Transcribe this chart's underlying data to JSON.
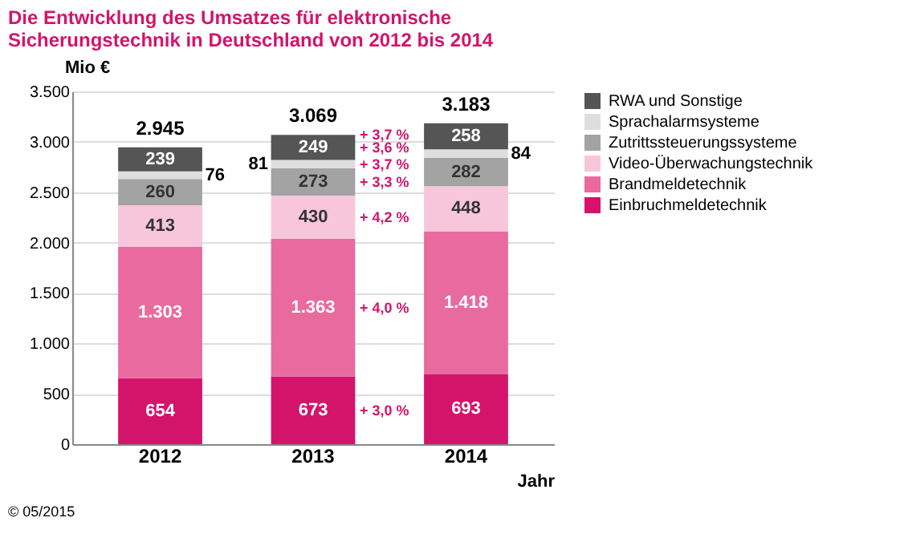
{
  "chart_data": {
    "type": "bar",
    "stacked": true,
    "title": "Die Entwicklung des Umsatzes für elektronische Sicherungstechnik in Deutschland von 2012 bis 2014",
    "ylabel": "Mio €",
    "xlabel": "Jahr",
    "categories": [
      "2012",
      "2013",
      "2014"
    ],
    "series": [
      {
        "name": "Einbruchmeldetechnik",
        "color": "#d4146a",
        "values": [
          654,
          673,
          693
        ],
        "value_labels": [
          "654",
          "673",
          "693"
        ]
      },
      {
        "name": "Brandmeldetechnik",
        "color": "#e96a9f",
        "values": [
          1303,
          1363,
          1418
        ],
        "value_labels": [
          "1.303",
          "1.363",
          "1.418"
        ]
      },
      {
        "name": "Video-Überwachungstechnik",
        "color": "#f7c6da",
        "values": [
          413,
          430,
          448
        ],
        "value_labels": [
          "413",
          "430",
          "448"
        ]
      },
      {
        "name": "Zutrittssteuerungssysteme",
        "color": "#a3a3a3",
        "values": [
          260,
          273,
          282
        ],
        "value_labels": [
          "260",
          "273",
          "282"
        ]
      },
      {
        "name": "Sprachalarmsysteme",
        "color": "#dedede",
        "values": [
          76,
          81,
          84
        ],
        "value_labels": [
          "76",
          "81",
          "84"
        ]
      },
      {
        "name": "RWA und Sonstige",
        "color": "#555555",
        "values": [
          239,
          249,
          258
        ],
        "value_labels": [
          "239",
          "249",
          "258"
        ]
      }
    ],
    "totals": [
      "2.945",
      "3.069",
      "3.183"
    ],
    "annotations": [
      "+ 3,0 %",
      "+ 4,0 %",
      "+ 4,2 %",
      "+ 3,3 %",
      "+ 3,7 %",
      "+ 3,6 %",
      "+ 3,7 %",
      "© 05/2015"
    ],
    "ylim": [
      0,
      3500
    ],
    "yticks": [
      0,
      500,
      {
        "value": 1000,
        "label": "1.000"
      },
      {
        "value": 1500,
        "label": "1.500"
      },
      {
        "value": 2000,
        "label": "2.000"
      },
      {
        "value": 2500,
        "label": "2.500"
      },
      {
        "value": 3000,
        "label": "3.000"
      },
      {
        "value": 3500,
        "label": "3.500"
      }
    ],
    "grid": "y",
    "legend": "right"
  }
}
